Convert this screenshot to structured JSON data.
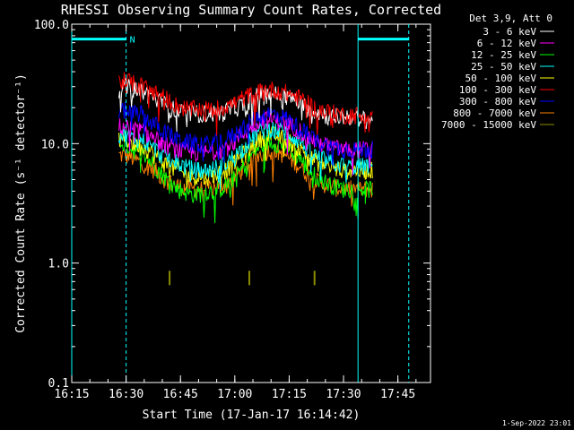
{
  "chart_data": {
    "type": "line",
    "title": "RHESSI Observing Summary Count Rates, Corrected",
    "xlabel": "Start Time (17-Jan-17 16:14:42)",
    "ylabel": "Corrected Count Rate (s⁻¹ detector⁻¹)",
    "yscale": "log",
    "ylim": [
      0.1,
      100.0
    ],
    "xlim": [
      "16:15",
      "17:54"
    ],
    "x_ticks": [
      "16:15",
      "16:30",
      "16:45",
      "17:00",
      "17:15",
      "17:30",
      "17:45"
    ],
    "y_ticks": [
      "100.0",
      "10.0",
      "1.0",
      "0.1"
    ],
    "grid": false,
    "legend_position": "top-right",
    "legend_header": "Det 3,9, Att 0",
    "x": [
      "16:28",
      "16:30",
      "16:32",
      "16:34",
      "16:36",
      "16:38",
      "16:40",
      "16:42",
      "16:44",
      "16:46",
      "16:48",
      "16:50",
      "16:52",
      "16:54",
      "16:56",
      "16:58",
      "17:00",
      "17:02",
      "17:04",
      "17:06",
      "17:08",
      "17:10",
      "17:12",
      "17:14",
      "17:16",
      "17:18",
      "17:20",
      "17:22",
      "17:24",
      "17:26",
      "17:28",
      "17:30",
      "17:32",
      "17:34",
      "17:36",
      "17:38"
    ],
    "series": [
      {
        "name": "3 - 6 keV",
        "color": "#ffffff",
        "values": [
          29,
          30,
          29,
          28,
          26,
          24,
          22,
          20,
          19,
          18,
          18,
          18,
          18,
          18,
          18,
          19,
          20,
          21,
          23,
          25,
          26,
          26,
          26,
          25,
          24,
          22,
          20,
          19,
          18,
          17,
          17,
          17,
          17,
          16,
          16,
          16
        ]
      },
      {
        "name": "6 - 12 keV",
        "color": "#ff00ff",
        "values": [
          14,
          14,
          13,
          13,
          12,
          11,
          10,
          9.5,
          9,
          8.6,
          8.5,
          8.5,
          8.5,
          8.6,
          9,
          9.5,
          10.5,
          12,
          13.5,
          15,
          16,
          16,
          15.5,
          15,
          14,
          13,
          11.5,
          10.5,
          10,
          9.5,
          9.2,
          9,
          9,
          9,
          9,
          9
        ]
      },
      {
        "name": "12 - 25 keV",
        "color": "#00ff00",
        "values": [
          10,
          10,
          9,
          8.5,
          7.5,
          6.5,
          5.5,
          4.8,
          4.2,
          4,
          3.8,
          3.8,
          4,
          4,
          4.2,
          4.6,
          5.2,
          6.2,
          7.5,
          9,
          10,
          10.5,
          10,
          9.5,
          8.5,
          7.5,
          6.2,
          5.5,
          5,
          4.6,
          4.4,
          4.2,
          4.2,
          4.2,
          4.2,
          4.2
        ]
      },
      {
        "name": "25 - 50 keV",
        "color": "#00ffff",
        "values": [
          12,
          12,
          11,
          11,
          10,
          9,
          8,
          7.5,
          7,
          6.5,
          6.2,
          6,
          6,
          6.2,
          6.6,
          7,
          8,
          9,
          10.5,
          12,
          13,
          13.5,
          13,
          12.5,
          11.5,
          10.5,
          9,
          8,
          7.5,
          7,
          6.8,
          6.6,
          6.5,
          6.5,
          6.5,
          6.5
        ]
      },
      {
        "name": "50 - 100 keV",
        "color": "#ffff00",
        "values": [
          11,
          11,
          10,
          9.5,
          9,
          8,
          7,
          6.5,
          6,
          5.6,
          5.4,
          5.3,
          5.3,
          5.5,
          5.8,
          6.2,
          7,
          8,
          9,
          10.5,
          11.5,
          12,
          11.5,
          11,
          10,
          9,
          8,
          7.2,
          6.8,
          6.4,
          6.2,
          6,
          6,
          6,
          6,
          6
        ]
      },
      {
        "name": "100 - 300 keV",
        "color": "#ff0000",
        "values": [
          33,
          34,
          32,
          31,
          29,
          27,
          25,
          23,
          21,
          20,
          19.5,
          19.5,
          19.5,
          19.5,
          20,
          21,
          22,
          24,
          25.5,
          27,
          28,
          28.5,
          28,
          27,
          25.5,
          24,
          22,
          20,
          19,
          18.5,
          18,
          17.5,
          17.5,
          17.5,
          17.5,
          17.5
        ]
      },
      {
        "name": "300 - 800 keV",
        "color": "#0000ff",
        "values": [
          19,
          19,
          18,
          18,
          16,
          14.5,
          13,
          12,
          11,
          10.5,
          10.2,
          10,
          10,
          10.2,
          10.6,
          11.2,
          12,
          13.5,
          15,
          16.5,
          17.5,
          18,
          17.5,
          16.5,
          15,
          13.5,
          12,
          11,
          10,
          9.5,
          9.2,
          9,
          9,
          9,
          9,
          9
        ]
      },
      {
        "name": "800 - 7000 keV",
        "color": "#ff7f00",
        "values": [
          8,
          8,
          7.5,
          7,
          6.5,
          6,
          5.2,
          4.8,
          4.5,
          4.3,
          4.2,
          4.2,
          4.2,
          4.3,
          4.5,
          4.8,
          5.3,
          6,
          6.8,
          7.8,
          8.5,
          8.8,
          8.5,
          8,
          7.2,
          6.5,
          5.6,
          5,
          4.7,
          4.5,
          4.3,
          4.2,
          4.2,
          4.2,
          4.2,
          4.2
        ]
      },
      {
        "name": "7000 - 15000 keV",
        "color": "#8b8b00",
        "values": [
          null,
          null,
          null,
          null,
          null,
          null,
          null,
          0.75,
          null,
          null,
          null,
          null,
          null,
          null,
          null,
          null,
          null,
          null,
          0.75,
          null,
          null,
          null,
          null,
          null,
          null,
          null,
          null,
          0.75,
          null,
          null,
          null,
          null,
          null,
          null,
          null,
          null
        ]
      }
    ],
    "markers": {
      "N": {
        "label": "N",
        "from": "16:15",
        "to": "16:30",
        "y": 75
      },
      "bars": [
        {
          "from": "17:34",
          "to": "17:48",
          "y": 75
        }
      ],
      "vlines_solid": [
        "16:15",
        "17:34"
      ],
      "vlines_dashed": [
        "16:30",
        "17:48"
      ]
    }
  },
  "footer_timestamp": "1-Sep-2022 23:01"
}
